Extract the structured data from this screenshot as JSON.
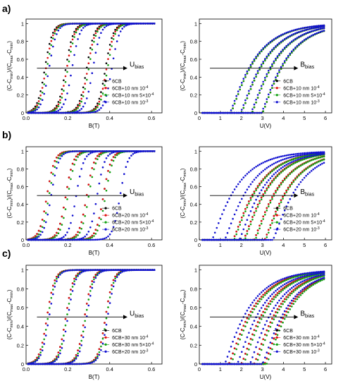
{
  "figure": {
    "row_labels": [
      "a)",
      "b)",
      "c)"
    ]
  },
  "chart_data": [
    {
      "id": "a-left",
      "type": "scatter",
      "row": "a)",
      "xlabel": "B(T)",
      "ylabel": "(C-C_min)/(C_max-C_min)",
      "xlim": [
        0,
        0.65
      ],
      "ylim": [
        0,
        1.05
      ],
      "xticks": [
        "0.0",
        "0.2",
        "0.4",
        "0.6"
      ],
      "yticks": [
        "0",
        "0.2",
        "0.4",
        "0.6",
        "0.8",
        "1"
      ],
      "arrow_label": "U_bias",
      "legend_position": "lower-right",
      "series": [
        {
          "name": "6CB",
          "color": "#000000",
          "x": [
            0.04,
            0.08,
            0.1,
            0.12,
            0.14,
            0.16,
            0.2,
            0.24,
            0.28,
            0.32,
            0.36,
            0.4,
            0.44,
            0.48,
            0.52,
            0.56,
            0.6,
            0.62
          ],
          "curves_T": [
            0.09,
            0.19,
            0.29,
            0.38
          ]
        },
        {
          "name": "6CB+10 nm 10^-4",
          "color": "#e01010",
          "curves_T": [
            0.095,
            0.195,
            0.295,
            0.385
          ]
        },
        {
          "name": "6CB+10 nm 5x10^-4",
          "color": "#10a010",
          "curves_T": [
            0.1,
            0.2,
            0.3,
            0.39
          ]
        },
        {
          "name": "6CB+10 nm 10^-3",
          "color": "#1010d0",
          "curves_T": [
            0.11,
            0.22,
            0.32,
            0.41
          ]
        }
      ]
    },
    {
      "id": "a-right",
      "type": "scatter",
      "row": "a)",
      "xlabel": "U(V)",
      "ylabel": "(C-C_min)/(C_max-C_min)",
      "xlim": [
        0,
        6.3
      ],
      "ylim": [
        0,
        1.05
      ],
      "xticks": [
        "0",
        "1",
        "2",
        "3",
        "4",
        "5",
        "6"
      ],
      "yticks": [
        "0",
        "0.2",
        "0.4",
        "0.6",
        "0.8",
        "1"
      ],
      "arrow_label": "B_bias",
      "legend_position": "lower-right",
      "series": [
        {
          "name": "6CB",
          "color": "#000000",
          "thresholds_V": [
            1.5,
            2.0,
            2.5,
            3.0
          ]
        },
        {
          "name": "6CB+10 nm 10^-4",
          "color": "#e01010",
          "thresholds_V": [
            1.5,
            2.0,
            2.5,
            3.0
          ]
        },
        {
          "name": "6CB+10 nm 5x10^-4",
          "color": "#10a010",
          "thresholds_V": [
            1.5,
            2.0,
            2.5,
            3.0
          ]
        },
        {
          "name": "6CB+10 nm 10^-3",
          "color": "#1010d0",
          "thresholds_V": [
            1.45,
            1.95,
            2.45,
            2.95
          ]
        }
      ]
    },
    {
      "id": "b-left",
      "type": "scatter",
      "row": "b)",
      "xlabel": "B(T)",
      "ylabel": "(C-C_min)/(C_max-C_min)",
      "xlim": [
        0,
        0.65
      ],
      "ylim": [
        0,
        1.05
      ],
      "xticks": [
        "0.0",
        "0.2",
        "0.4",
        "0.6"
      ],
      "yticks": [
        "0",
        "0.2",
        "0.4",
        "0.6",
        "0.8",
        "1"
      ],
      "arrow_label": "U_bias",
      "legend_position": "lower-right",
      "series": [
        {
          "name": "6CB",
          "color": "#000000",
          "curves_T": [
            0.1,
            0.19,
            0.29,
            0.37
          ]
        },
        {
          "name": "6CB+20 nm 10^-4",
          "color": "#e01010",
          "curves_T": [
            0.1,
            0.19,
            0.29,
            0.37
          ]
        },
        {
          "name": "6CB+20 nm 5x10^-4",
          "color": "#10a010",
          "curves_T": [
            0.11,
            0.2,
            0.3,
            0.38
          ]
        },
        {
          "name": "6CB+20 nm 10^-3",
          "color": "#1010d0",
          "curves_T": [
            0.12,
            0.24,
            0.34,
            0.45
          ]
        }
      ]
    },
    {
      "id": "b-right",
      "type": "scatter",
      "row": "b)",
      "xlabel": "U(V)",
      "ylabel": "(C-C_min)/(C_max-C_min)",
      "xlim": [
        0,
        6.3
      ],
      "ylim": [
        0,
        1.05
      ],
      "xticks": [
        "0",
        "1",
        "2",
        "3",
        "4",
        "5",
        "6"
      ],
      "yticks": [
        "0",
        "0.2",
        "0.4",
        "0.6",
        "0.8",
        "1"
      ],
      "arrow_label": "B_bias",
      "legend_position": "lower-right",
      "series": [
        {
          "name": "6CB",
          "color": "#000000",
          "thresholds_V": [
            1.6,
            2.1,
            2.6,
            3.1
          ]
        },
        {
          "name": "6CB+20 nm 10^-4",
          "color": "#e01010",
          "thresholds_V": [
            1.6,
            2.1,
            2.6,
            3.1
          ]
        },
        {
          "name": "6CB+20 nm 5x10^-4",
          "color": "#10a010",
          "thresholds_V": [
            1.65,
            2.15,
            2.65,
            3.15
          ]
        },
        {
          "name": "6CB+20 nm 10^-3",
          "color": "#1010d0",
          "thresholds_V": [
            0.6,
            1.2,
            1.9,
            3.5
          ]
        }
      ]
    },
    {
      "id": "c-left",
      "type": "scatter",
      "row": "c)",
      "xlabel": "B(T)",
      "ylabel": "(C-C_min)/(C_max-C_min)",
      "xlim": [
        0,
        0.65
      ],
      "ylim": [
        0,
        1.05
      ],
      "xticks": [
        "0.0",
        "0.2",
        "0.4",
        "0.6"
      ],
      "yticks": [
        "0",
        "0.2",
        "0.4",
        "0.6",
        "0.8",
        "1"
      ],
      "arrow_label": "U_bias",
      "legend_position": "lower-right",
      "series": [
        {
          "name": "6CB",
          "color": "#000000",
          "curves_T": [
            0.1,
            0.19,
            0.28,
            0.38
          ]
        },
        {
          "name": "6CB+30 nm 10^-4",
          "color": "#e01010",
          "curves_T": [
            0.1,
            0.19,
            0.28,
            0.38
          ]
        },
        {
          "name": "6CB+30 nm 5x10^-4",
          "color": "#10a010",
          "curves_T": [
            0.105,
            0.195,
            0.285,
            0.385
          ]
        },
        {
          "name": "6CB+20 nm 10^-3",
          "color": "#1010d0",
          "curves_T": [
            0.11,
            0.2,
            0.29,
            0.39
          ]
        }
      ]
    },
    {
      "id": "c-right",
      "type": "scatter",
      "row": "c)",
      "xlabel": "U(V)",
      "ylabel": "(C-C_min)/(C_max-C_min)",
      "xlim": [
        0,
        6.3
      ],
      "ylim": [
        0,
        1.05
      ],
      "xticks": [
        "0",
        "1",
        "2",
        "3",
        "4",
        "5",
        "6"
      ],
      "yticks": [
        "0",
        "0.2",
        "0.4",
        "0.6",
        "0.8",
        "1"
      ],
      "arrow_label": "B_bias",
      "legend_position": "lower-right",
      "series": [
        {
          "name": "6CB",
          "color": "#000000",
          "thresholds_V": [
            1.4,
            2.0,
            2.6,
            3.1
          ]
        },
        {
          "name": "6CB+30 nm 10^-4",
          "color": "#e01010",
          "thresholds_V": [
            1.4,
            2.0,
            2.6,
            3.1
          ]
        },
        {
          "name": "6CB+30 nm 5x10^-4",
          "color": "#10a010",
          "thresholds_V": [
            1.5,
            2.1,
            2.7,
            3.2
          ]
        },
        {
          "name": "6CB+30 nm 10^-3",
          "color": "#1010d0",
          "thresholds_V": [
            1.2,
            1.8,
            2.4,
            3.0
          ]
        }
      ]
    }
  ]
}
